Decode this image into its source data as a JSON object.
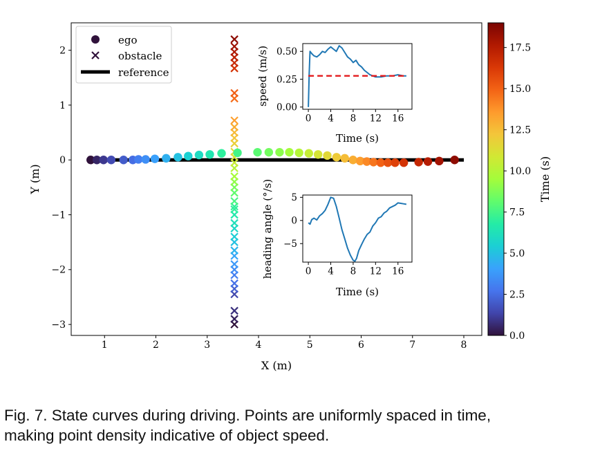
{
  "chart_data": [
    {
      "type": "scatter",
      "name": "trajectory",
      "xlabel": "X (m)",
      "ylabel": "Y (m)",
      "xlim": [
        0.35,
        8.35
      ],
      "ylim": [
        -3.2,
        2.5
      ],
      "xticks": [
        1,
        2,
        3,
        4,
        5,
        6,
        7,
        8
      ],
      "yticks": [
        -3,
        -2,
        -1,
        0,
        1,
        2
      ],
      "xtick_labels": [
        "1",
        "2",
        "3",
        "4",
        "5",
        "6",
        "7",
        "8"
      ],
      "ytick_labels": [
        "−3",
        "−2",
        "−1",
        "0",
        "1",
        "2"
      ],
      "legend": {
        "position": "top-left",
        "entries": [
          "ego",
          "obstacle",
          "reference"
        ]
      },
      "series": [
        {
          "name": "reference",
          "kind": "line",
          "color": "#000000",
          "x": [
            0.7,
            8.0
          ],
          "y": [
            0,
            0
          ]
        },
        {
          "name": "ego",
          "kind": "circle",
          "t": [
            0.0,
            0.5,
            1.0,
            1.5,
            2.0,
            2.5,
            3.0,
            3.5,
            4.0,
            4.5,
            5.0,
            5.5,
            6.0,
            6.5,
            7.0,
            7.5,
            8.0,
            8.5,
            9.0,
            9.5,
            10.0,
            10.5,
            11.0,
            11.5,
            12.0,
            12.5,
            13.0,
            13.5,
            14.0,
            14.5,
            15.0,
            15.5,
            16.0,
            16.5,
            17.0,
            17.5,
            18.0,
            18.5
          ],
          "x": [
            0.73,
            0.85,
            0.98,
            1.13,
            1.37,
            1.55,
            1.66,
            1.8,
            1.98,
            2.2,
            2.43,
            2.63,
            2.84,
            3.05,
            3.28,
            3.59,
            3.98,
            4.2,
            4.41,
            4.6,
            4.79,
            4.98,
            5.16,
            5.34,
            5.52,
            5.68,
            5.84,
            5.98,
            6.11,
            6.24,
            6.38,
            6.52,
            6.66,
            6.83,
            7.12,
            7.3,
            7.52,
            7.82
          ],
          "y": [
            0.0,
            0.0,
            0.0,
            0.0,
            0.0,
            0.0,
            0.01,
            0.01,
            0.02,
            0.03,
            0.05,
            0.07,
            0.09,
            0.1,
            0.12,
            0.13,
            0.14,
            0.14,
            0.14,
            0.14,
            0.13,
            0.12,
            0.1,
            0.08,
            0.05,
            0.03,
            0.0,
            -0.02,
            -0.03,
            -0.04,
            -0.05,
            -0.05,
            -0.05,
            -0.05,
            -0.04,
            -0.03,
            -0.02,
            0.0
          ]
        },
        {
          "name": "obstacle",
          "kind": "x",
          "x": 3.53,
          "t": [
            0.0,
            0.4,
            0.8,
            1.4,
            2.1,
            2.6,
            3.0,
            3.4,
            3.8,
            4.2,
            4.6,
            5.0,
            5.4,
            5.8,
            6.2,
            6.6,
            7.0,
            7.1,
            7.6,
            8.1,
            8.6,
            9.1,
            9.6,
            10.1,
            10.6,
            11.0,
            11.4,
            11.8,
            12.2,
            12.6,
            13.0,
            13.4,
            14.7,
            15.1,
            16.5,
            16.9,
            17.3,
            17.7,
            18.1,
            18.5
          ],
          "y": [
            -3.0,
            -2.9,
            -2.75,
            -2.45,
            -2.35,
            -2.25,
            -2.1,
            -2.0,
            -1.9,
            -1.75,
            -1.65,
            -1.5,
            -1.4,
            -1.25,
            -1.15,
            -1.0,
            -0.9,
            -0.85,
            -0.75,
            -0.6,
            -0.5,
            -0.4,
            -0.3,
            -0.15,
            -0.05,
            0.05,
            0.15,
            0.3,
            0.4,
            0.5,
            0.6,
            0.72,
            1.12,
            1.22,
            1.67,
            1.77,
            1.87,
            1.97,
            2.07,
            2.2
          ]
        }
      ]
    },
    {
      "type": "line",
      "name": "speed",
      "xlabel": "Time (s)",
      "ylabel": "speed (m/s)",
      "xlim": [
        -1,
        18.5
      ],
      "ylim": [
        -0.02,
        0.57
      ],
      "xticks": [
        0,
        4,
        8,
        12,
        16
      ],
      "yticks": [
        0.0,
        0.25,
        0.5
      ],
      "xtick_labels": [
        "0",
        "4",
        "8",
        "12",
        "16"
      ],
      "ytick_labels": [
        "0.00",
        "0.25",
        "0.50"
      ],
      "series": [
        {
          "name": "speed",
          "color": "#1f77b4",
          "x": [
            0,
            0.15,
            0.3,
            0.6,
            1.0,
            1.5,
            2.0,
            2.5,
            3.0,
            3.5,
            4.0,
            4.5,
            5.0,
            5.5,
            6.0,
            6.5,
            7.0,
            7.5,
            8.0,
            8.5,
            9.0,
            9.5,
            10.0,
            10.5,
            11.0,
            11.5,
            12.0,
            12.5,
            13.0,
            14.0,
            15.0,
            16.0,
            17.0,
            17.5
          ],
          "y": [
            0.0,
            0.3,
            0.5,
            0.48,
            0.46,
            0.45,
            0.47,
            0.5,
            0.49,
            0.52,
            0.54,
            0.52,
            0.5,
            0.55,
            0.53,
            0.49,
            0.45,
            0.43,
            0.4,
            0.42,
            0.38,
            0.36,
            0.33,
            0.31,
            0.29,
            0.28,
            0.27,
            0.27,
            0.27,
            0.28,
            0.28,
            0.29,
            0.28,
            0.28
          ]
        },
        {
          "name": "reference",
          "style": "dashed",
          "color": "#e31a1c",
          "x": [
            0,
            17.5
          ],
          "y": [
            0.28,
            0.28
          ]
        }
      ]
    },
    {
      "type": "line",
      "name": "heading",
      "xlabel": "Time (s)",
      "ylabel": "heading angle (°/s)",
      "xlim": [
        -1,
        18.5
      ],
      "ylim": [
        -9,
        5.5
      ],
      "xticks": [
        0,
        4,
        8,
        12,
        16
      ],
      "yticks": [
        -5,
        0,
        5
      ],
      "xtick_labels": [
        "0",
        "4",
        "8",
        "12",
        "16"
      ],
      "ytick_labels": [
        "−5",
        "0",
        "5"
      ],
      "series": [
        {
          "name": "heading",
          "color": "#1f77b4",
          "x": [
            0,
            0.3,
            0.6,
            1.0,
            1.5,
            2.0,
            2.5,
            3.0,
            3.5,
            4.0,
            4.5,
            5.0,
            5.5,
            6.0,
            6.5,
            7.0,
            7.5,
            8.0,
            8.3,
            8.6,
            9.0,
            9.5,
            10.0,
            10.5,
            11.0,
            11.5,
            12.0,
            12.5,
            13.0,
            13.5,
            14.0,
            14.5,
            15.0,
            15.5,
            16.0,
            16.5,
            17.0,
            17.5
          ],
          "y": [
            -0.5,
            -0.8,
            0.2,
            0.5,
            0.1,
            1.0,
            1.5,
            2.2,
            3.5,
            5.0,
            4.8,
            3.0,
            0.5,
            -2.0,
            -4.0,
            -6.0,
            -7.5,
            -8.6,
            -8.8,
            -8.2,
            -6.5,
            -5.2,
            -4.0,
            -3.0,
            -2.5,
            -1.2,
            -0.5,
            0.5,
            0.8,
            1.6,
            2.0,
            2.7,
            3.0,
            3.3,
            3.8,
            3.7,
            3.6,
            3.5
          ]
        }
      ]
    },
    {
      "type": "colorbar",
      "name": "time-colorbar",
      "label": "Time (s)",
      "range": [
        0,
        19
      ],
      "ticks": [
        0.0,
        2.5,
        5.0,
        7.5,
        10.0,
        12.5,
        15.0,
        17.5
      ],
      "tick_labels": [
        "0.0",
        "2.5",
        "5.0",
        "7.5",
        "10.0",
        "12.5",
        "15.0",
        "17.5"
      ],
      "colormap": "jet",
      "colormap_stops": [
        "#30123b",
        "#4145ab",
        "#4675ed",
        "#39a2fc",
        "#1bcfd4",
        "#24eca6",
        "#61fc6c",
        "#a4fc3b",
        "#d1e834",
        "#f3c63a",
        "#fe9b2d",
        "#f36315",
        "#d93806",
        "#b11901",
        "#7a0402"
      ]
    }
  ],
  "caption": {
    "line1": "Fig. 7. State curves during driving. Points are uniformly spaced in time,",
    "line2": "making point density indicative of object speed."
  }
}
